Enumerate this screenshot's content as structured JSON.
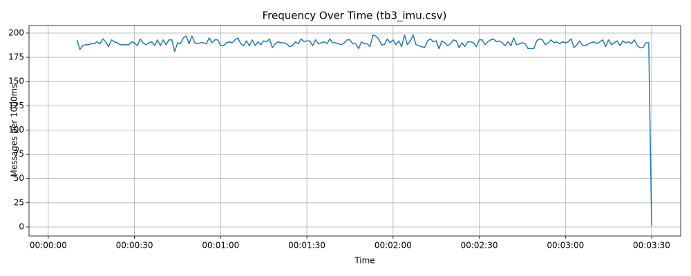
{
  "chart_data": {
    "type": "line",
    "title": "Frequency Over Time (tb3_imu.csv)",
    "x_label": "Time",
    "y_label": "Messages per 1000ms",
    "x": [
      10,
      11,
      12,
      13,
      14,
      15,
      16,
      17,
      18,
      19,
      20,
      21,
      22,
      23,
      24,
      25,
      26,
      27,
      28,
      29,
      30,
      31,
      32,
      33,
      34,
      35,
      36,
      37,
      38,
      39,
      40,
      41,
      42,
      43,
      44,
      45,
      46,
      47,
      48,
      49,
      50,
      51,
      52,
      53,
      54,
      55,
      56,
      57,
      58,
      59,
      60,
      61,
      62,
      63,
      64,
      65,
      66,
      67,
      68,
      69,
      70,
      71,
      72,
      73,
      74,
      75,
      76,
      77,
      78,
      79,
      80,
      81,
      82,
      83,
      84,
      85,
      86,
      87,
      88,
      89,
      90,
      91,
      92,
      93,
      94,
      95,
      96,
      97,
      98,
      99,
      100,
      101,
      102,
      103,
      104,
      105,
      106,
      107,
      108,
      109,
      110,
      111,
      112,
      113,
      114,
      115,
      116,
      117,
      118,
      119,
      120,
      121,
      122,
      123,
      124,
      125,
      126,
      127,
      128,
      129,
      130,
      131,
      132,
      133,
      134,
      135,
      136,
      137,
      138,
      139,
      140,
      141,
      142,
      143,
      144,
      145,
      146,
      147,
      148,
      149,
      150,
      151,
      152,
      153,
      154,
      155,
      156,
      157,
      158,
      159,
      160,
      161,
      162,
      163,
      164,
      165,
      166,
      167,
      168,
      169,
      170,
      171,
      172,
      173,
      174,
      175,
      176,
      177,
      178,
      179,
      180,
      181,
      182,
      183,
      184,
      185,
      186,
      187,
      188,
      189,
      190,
      191,
      192,
      193,
      194,
      195,
      196,
      197,
      198,
      199,
      200,
      201,
      202,
      203,
      204,
      205,
      206,
      207,
      208,
      209,
      210
    ],
    "series": [
      {
        "name": "tb3_imu.csv",
        "color": "#1f77b4",
        "values": [
          193,
          183,
          187,
          188,
          188,
          189,
          189,
          191,
          189,
          194,
          191,
          186,
          193,
          191,
          190,
          188,
          188,
          188,
          188,
          191,
          190,
          187,
          194,
          190,
          188,
          190,
          191,
          187,
          193,
          187,
          193,
          188,
          193,
          193,
          181,
          190,
          189,
          195,
          197,
          189,
          197,
          190,
          189,
          190,
          190,
          189,
          195,
          190,
          193,
          193,
          187,
          187,
          190,
          191,
          190,
          193,
          195,
          189,
          187,
          192,
          187,
          193,
          187,
          191,
          188,
          192,
          191,
          194,
          185,
          189,
          191,
          190,
          190,
          189,
          186,
          187,
          191,
          189,
          194,
          191,
          192,
          192,
          187,
          193,
          189,
          190,
          191,
          189,
          194,
          190,
          190,
          189,
          188,
          190,
          193,
          193,
          189,
          189,
          184,
          191,
          189,
          189,
          186,
          198,
          197,
          194,
          188,
          188,
          194,
          190,
          193,
          188,
          192,
          186,
          198,
          188,
          192,
          198,
          188,
          187,
          186,
          185,
          192,
          194,
          191,
          192,
          184,
          192,
          190,
          187,
          189,
          193,
          192,
          185,
          190,
          186,
          191,
          191,
          190,
          186,
          193,
          193,
          188,
          191,
          193,
          194,
          191,
          192,
          190,
          187,
          191,
          187,
          195,
          188,
          189,
          190,
          189,
          184,
          184,
          184,
          192,
          194,
          193,
          188,
          190,
          193,
          190,
          191,
          189,
          191,
          190,
          191,
          194,
          185,
          188,
          192,
          187,
          187,
          189,
          190,
          191,
          189,
          191,
          193,
          186,
          193,
          188,
          190,
          192,
          187,
          192,
          190,
          191,
          189,
          193,
          187,
          185,
          185,
          190,
          190,
          1
        ]
      }
    ],
    "xlim": [
      -6.7,
      220.1
    ],
    "ylim": [
      -9.3,
      207.8
    ],
    "xticks": [
      {
        "value": 0,
        "label": "00:00:00"
      },
      {
        "value": 30,
        "label": "00:00:30"
      },
      {
        "value": 60,
        "label": "00:01:00"
      },
      {
        "value": 90,
        "label": "00:01:30"
      },
      {
        "value": 120,
        "label": "00:02:00"
      },
      {
        "value": 150,
        "label": "00:02:30"
      },
      {
        "value": 180,
        "label": "00:03:00"
      },
      {
        "value": 210,
        "label": "00:03:30"
      }
    ],
    "yticks": [
      0,
      25,
      50,
      75,
      100,
      125,
      150,
      175,
      200
    ],
    "grid": true
  }
}
